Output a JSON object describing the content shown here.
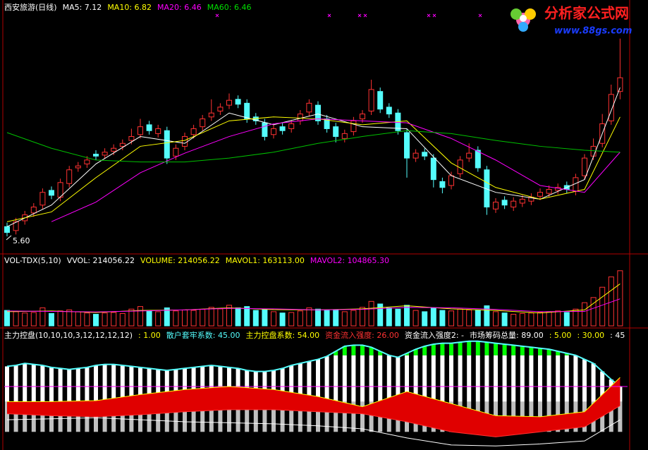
{
  "chart_data": [
    {
      "type": "candlestick",
      "title": "西安旅游(日线)",
      "title_color": "#ffffff",
      "header": [
        {
          "text": "MA5: 7.12",
          "color": "#ffffff"
        },
        {
          "text": "MA10: 6.82",
          "color": "#ffff00"
        },
        {
          "text": "MA20: 6.46",
          "color": "#ff00ff"
        },
        {
          "text": "MA60: 6.46",
          "color": "#00e000"
        }
      ],
      "annotation": "5.60",
      "up_color": "#ff3232",
      "down_color": "#54fcfc",
      "ylim": [
        5.45,
        7.87
      ],
      "open": [
        5.7,
        5.66,
        5.76,
        5.84,
        5.92,
        6.07,
        6.0,
        6.14,
        6.3,
        6.34,
        6.44,
        6.43,
        6.47,
        6.52,
        6.58,
        6.64,
        6.74,
        6.65,
        6.68,
        6.42,
        6.52,
        6.64,
        6.72,
        6.82,
        6.88,
        6.94,
        7.0,
        6.96,
        6.82,
        6.76,
        6.64,
        6.72,
        6.7,
        6.78,
        6.87,
        6.94,
        6.8,
        6.72,
        6.6,
        6.67,
        6.8,
        6.88,
        7.08,
        6.92,
        6.86,
        6.66,
        6.4,
        6.46,
        6.4,
        6.16,
        6.12,
        6.24,
        6.4,
        6.48,
        6.28,
        5.88,
        5.97,
        5.9,
        5.94,
        5.96,
        6.01,
        6.04,
        6.07,
        6.12,
        6.06,
        6.22,
        6.42,
        6.55,
        6.78,
        7.08
      ],
      "high": [
        5.74,
        5.79,
        5.86,
        5.94,
        6.09,
        6.11,
        6.19,
        6.32,
        6.36,
        6.42,
        6.48,
        6.5,
        6.54,
        6.59,
        6.7,
        6.8,
        6.78,
        6.74,
        6.72,
        6.54,
        6.66,
        6.74,
        6.84,
        7.0,
        6.96,
        7.06,
        7.04,
        7.0,
        6.86,
        6.8,
        6.74,
        6.76,
        6.79,
        6.89,
        7.0,
        6.98,
        6.84,
        6.76,
        6.69,
        6.82,
        6.89,
        7.2,
        7.12,
        6.96,
        6.9,
        6.7,
        6.49,
        6.5,
        6.44,
        6.2,
        6.26,
        6.42,
        6.55,
        6.52,
        6.32,
        5.99,
        6.01,
        6.0,
        6.02,
        6.04,
        6.09,
        6.12,
        6.14,
        6.16,
        6.24,
        6.44,
        6.6,
        6.85,
        7.15,
        7.62
      ],
      "low": [
        5.6,
        5.62,
        5.72,
        5.8,
        5.88,
        5.98,
        5.96,
        6.1,
        6.26,
        6.3,
        6.38,
        6.39,
        6.43,
        6.48,
        6.54,
        6.6,
        6.64,
        6.61,
        6.34,
        6.38,
        6.48,
        6.6,
        6.68,
        6.78,
        6.84,
        6.9,
        6.91,
        6.76,
        6.74,
        6.58,
        6.6,
        6.64,
        6.66,
        6.74,
        6.83,
        6.74,
        6.66,
        6.56,
        6.56,
        6.63,
        6.76,
        6.84,
        6.86,
        6.81,
        6.64,
        6.2,
        6.36,
        6.38,
        6.1,
        6.04,
        6.08,
        6.2,
        6.36,
        6.26,
        5.82,
        5.84,
        5.88,
        5.86,
        5.9,
        5.92,
        5.97,
        6.0,
        6.03,
        6.04,
        6.02,
        6.18,
        6.38,
        6.51,
        6.74,
        7.0
      ],
      "close": [
        5.64,
        5.75,
        5.82,
        5.9,
        6.05,
        6.02,
        6.15,
        6.28,
        6.32,
        6.38,
        6.42,
        6.46,
        6.5,
        6.55,
        6.62,
        6.72,
        6.68,
        6.7,
        6.4,
        6.5,
        6.62,
        6.7,
        6.8,
        6.86,
        6.92,
        6.99,
        6.95,
        6.8,
        6.78,
        6.62,
        6.7,
        6.68,
        6.75,
        6.85,
        6.96,
        6.78,
        6.7,
        6.62,
        6.65,
        6.78,
        6.85,
        7.1,
        6.9,
        6.85,
        6.68,
        6.4,
        6.45,
        6.42,
        6.18,
        6.1,
        6.22,
        6.38,
        6.45,
        6.3,
        5.9,
        5.95,
        5.92,
        5.96,
        5.98,
        6.0,
        6.05,
        6.08,
        6.1,
        6.08,
        6.2,
        6.4,
        6.52,
        6.75,
        7.05,
        7.22
      ],
      "series": [
        {
          "color": "#ffffff",
          "x": [
            0,
            5,
            10,
            15,
            20,
            25,
            30,
            35,
            40,
            45,
            50,
            55,
            60,
            65,
            69
          ],
          "values": [
            5.7,
            5.92,
            6.34,
            6.62,
            6.55,
            6.86,
            6.74,
            6.85,
            6.72,
            6.7,
            6.22,
            6.05,
            5.98,
            6.18,
            7.12
          ]
        },
        {
          "color": "#ffff00",
          "x": [
            0,
            5,
            10,
            15,
            20,
            25,
            30,
            35,
            40,
            45,
            50,
            55,
            60,
            65,
            69
          ],
          "values": [
            5.75,
            5.85,
            6.2,
            6.52,
            6.58,
            6.78,
            6.82,
            6.8,
            6.74,
            6.78,
            6.35,
            6.1,
            5.98,
            6.08,
            6.82
          ]
        },
        {
          "color": "#ff00ff",
          "x": [
            0,
            5,
            10,
            15,
            20,
            25,
            30,
            35,
            40,
            45,
            50,
            55,
            60,
            65,
            69
          ],
          "values": [
            null,
            5.75,
            5.95,
            6.25,
            6.45,
            6.62,
            6.75,
            6.8,
            6.78,
            6.76,
            6.6,
            6.38,
            6.12,
            6.05,
            6.46
          ]
        },
        {
          "color": "#00c000",
          "x": [
            0,
            5,
            10,
            15,
            20,
            25,
            30,
            35,
            40,
            45,
            50,
            55,
            60,
            65,
            69
          ],
          "values": [
            6.66,
            6.5,
            6.38,
            6.36,
            6.36,
            6.4,
            6.46,
            6.55,
            6.62,
            6.68,
            6.65,
            6.58,
            6.52,
            6.48,
            6.46
          ]
        }
      ]
    },
    {
      "type": "bar",
      "title": "VOL-TDX(5,10)",
      "title_color": "#ffffff",
      "header": [
        {
          "text": "VVOL: 214056.22",
          "color": "#ffffff"
        },
        {
          "text": "VOLUME: 214056.22",
          "color": "#ffff00"
        },
        {
          "text": "MAVOL1: 163113.00",
          "color": "#ffff00"
        },
        {
          "text": "MAVOL2: 104865.30",
          "color": "#ff00ff"
        }
      ],
      "ylim": [
        0,
        230000
      ],
      "values": [
        60000,
        55000,
        50000,
        52000,
        70000,
        48000,
        58000,
        62000,
        55000,
        50000,
        45000,
        50000,
        52000,
        48000,
        65000,
        75000,
        60000,
        55000,
        70000,
        58000,
        62000,
        60000,
        64000,
        72000,
        66000,
        80000,
        70000,
        75000,
        60000,
        65000,
        55000,
        50000,
        52000,
        58000,
        70000,
        65000,
        60000,
        62000,
        55000,
        60000,
        72000,
        95000,
        85000,
        70000,
        65000,
        80000,
        60000,
        55000,
        70000,
        60000,
        58000,
        65000,
        62000,
        60000,
        78000,
        55000,
        50000,
        45000,
        48000,
        50000,
        52000,
        55000,
        58000,
        52000,
        65000,
        90000,
        110000,
        150000,
        190000,
        214056.22
      ],
      "series": [
        {
          "color": "#ffff00",
          "x": [
            0,
            5,
            10,
            15,
            20,
            25,
            30,
            35,
            40,
            45,
            50,
            55,
            60,
            65,
            69
          ],
          "values": [
            55000,
            58000,
            52000,
            60000,
            62000,
            70000,
            63000,
            62000,
            66000,
            78000,
            66000,
            60000,
            50000,
            62000,
            163113
          ]
        },
        {
          "color": "#ff00ff",
          "x": [
            0,
            5,
            10,
            15,
            20,
            25,
            30,
            35,
            40,
            45,
            50,
            55,
            60,
            65,
            69
          ],
          "values": [
            58000,
            56000,
            54000,
            58000,
            62000,
            68000,
            66000,
            62000,
            64000,
            72000,
            70000,
            64000,
            55000,
            56000,
            104865.3
          ]
        }
      ]
    },
    {
      "type": "composite",
      "title": "主力控盘(10,10,10,3,12,12,12,12)",
      "title_color": "#ffffff",
      "header": [
        {
          "text": ": 1.00",
          "color": "#ffff00"
        },
        {
          "text": "散户套牢系数: 45.00",
          "color": "#54fcfc"
        },
        {
          "text": "主力控盘系数: 54.00",
          "color": "#ffff00"
        },
        {
          "text": "资金流入强度: 26.00",
          "color": "#ff3232"
        },
        {
          "text": "资金流入强度2: -",
          "color": "#ffffff"
        },
        {
          "text": "市场筹码总量: 89.00",
          "color": "#ffffff"
        },
        {
          "text": ": 5.00",
          "color": "#ffff00"
        },
        {
          "text": ": 30.00",
          "color": "#ffff00"
        },
        {
          "text": ": 45",
          "color": "#ffffff"
        }
      ],
      "ylim": [
        -18,
        101
      ],
      "bar_color": "#ffffff",
      "edge_color": "#54fcfc",
      "green_from": 76,
      "green_color": "#00ff00",
      "fill_color": "#e00000",
      "bar_values": [
        65,
        66,
        68,
        67,
        66,
        64,
        63,
        62,
        63,
        64,
        66,
        67,
        67,
        66,
        65,
        64,
        63,
        62,
        61,
        62,
        63,
        64,
        65,
        66,
        65,
        64,
        63,
        61,
        60,
        60,
        61,
        63,
        66,
        68,
        70,
        72,
        75,
        80,
        85,
        86,
        86,
        84,
        80,
        76,
        74,
        78,
        82,
        85,
        87,
        88,
        88,
        89,
        90,
        90,
        89,
        88,
        87,
        86,
        85,
        84,
        83,
        82,
        80,
        78,
        76,
        72,
        68,
        60,
        52,
        45
      ],
      "levels": [
        {
          "value": 30,
          "color": "#c0c0c0",
          "style": "bars"
        },
        {
          "value": 45,
          "color": "#ff00ff",
          "style": "line"
        }
      ],
      "series": [
        {
          "color": "#ffff00",
          "x": [
            0,
            5,
            10,
            15,
            20,
            25,
            30,
            35,
            40,
            45,
            50,
            55,
            60,
            65,
            69
          ],
          "values": [
            30,
            30,
            31,
            37,
            42,
            45,
            42,
            35,
            25,
            40,
            28,
            16,
            15,
            20,
            54
          ]
        },
        {
          "color": "#ff3232",
          "x": [
            0,
            5,
            10,
            15,
            20,
            25,
            30,
            35,
            40,
            45,
            50,
            55,
            60,
            65,
            69
          ],
          "values": [
            18,
            16,
            15,
            17,
            20,
            22,
            22,
            20,
            18,
            10,
            0,
            -5,
            0,
            5,
            26
          ]
        },
        {
          "color": "#ffffff",
          "x": [
            0,
            5,
            10,
            15,
            20,
            25,
            30,
            35,
            40,
            45,
            50,
            55,
            60,
            65,
            69
          ],
          "values": [
            12,
            13,
            14,
            12,
            10,
            9,
            8,
            6,
            3,
            -6,
            -13,
            -14,
            -12,
            -9,
            12
          ]
        }
      ]
    }
  ],
  "watermark": {
    "name": "分析家公式网",
    "url": "www.88gs.com"
  }
}
